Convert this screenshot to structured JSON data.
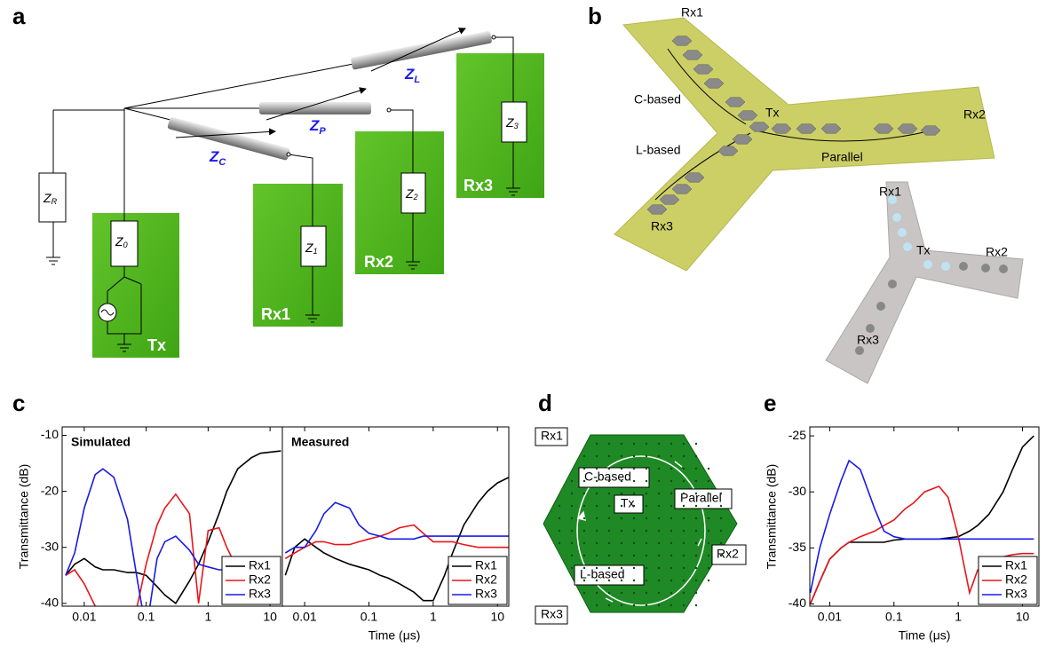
{
  "panels": {
    "a": {
      "label": "a",
      "z_r": [
        "Z",
        "R"
      ],
      "z_0": [
        "Z",
        "0"
      ],
      "z_1": [
        "Z",
        "1"
      ],
      "z_2": [
        "Z",
        "2"
      ],
      "z_3": [
        "Z",
        "3"
      ],
      "z_c": [
        "Z",
        "C"
      ],
      "z_p": [
        "Z",
        "P"
      ],
      "z_l": [
        "Z",
        "L"
      ],
      "tx": "Tx",
      "rx1": "Rx1",
      "rx2": "Rx2",
      "rx3": "Rx3"
    },
    "b": {
      "label": "b",
      "rx1": "Rx1",
      "c_based": "C-based",
      "l_based": "L-based",
      "tx": "Tx",
      "rx2": "Rx2",
      "parallel": "Parallel",
      "rx3": "Rx3",
      "photo_rx1": "Rx1",
      "photo_tx": "Tx",
      "photo_rx2": "Rx2",
      "photo_rx3": "Rx3"
    },
    "c": {
      "label": "c"
    },
    "d": {
      "label": "d",
      "rx1": "Rx1",
      "c_based": "C-based",
      "tx": "Tx",
      "parallel": "Parallel",
      "rx2": "Rx2",
      "l_based": "L-based",
      "rx3": "Rx3"
    },
    "e": {
      "label": "e"
    }
  },
  "chart_data": [
    {
      "type": "line",
      "title": "Simulated",
      "ylabel": "Transmittance (dB)",
      "log_x": true,
      "legend": "lower right",
      "x": [
        0.005,
        0.007,
        0.01,
        0.015,
        0.02,
        0.03,
        0.05,
        0.07,
        0.1,
        0.15,
        0.2,
        0.3,
        0.5,
        0.7,
        1,
        1.5,
        2,
        3,
        5,
        7,
        10,
        15
      ],
      "xlim": [
        0.0044,
        15.8
      ],
      "ylim": [
        -40.5,
        -8.5
      ],
      "xticks": [
        0.01,
        0.1,
        1,
        10
      ],
      "yticks": [
        -10,
        -20,
        -30,
        -40
      ],
      "series": [
        {
          "name": "Rx1",
          "color": "#000000",
          "values": [
            -35,
            -33,
            -32,
            -33.5,
            -34,
            -34,
            -34.5,
            -34.5,
            -35,
            -37,
            -38.5,
            -40,
            -36,
            -33,
            -29,
            -24,
            -20,
            -16,
            -14,
            -13.2,
            -13,
            -12.8
          ]
        },
        {
          "name": "Rx2",
          "color": "#e8161b",
          "values": [
            -35,
            -34,
            -36.5,
            -40.5,
            -42,
            -45,
            -45,
            -41,
            -33,
            -26,
            -23,
            -20.5,
            -24,
            -40,
            -27,
            -26.5,
            -30,
            -34,
            -34,
            -34,
            -34,
            -34
          ]
        },
        {
          "name": "Rx3",
          "color": "#1a1ae6",
          "values": [
            -35,
            -31,
            -23,
            -17,
            -16,
            -17.5,
            -25,
            -35,
            -45,
            -32,
            -29,
            -28,
            -30.5,
            -33,
            -33.5,
            -34,
            -34,
            -34,
            -34,
            -34,
            -34,
            -34
          ]
        }
      ]
    },
    {
      "type": "line",
      "title": "Measured",
      "xlabel": "Time (μs)",
      "log_x": true,
      "legend": "lower right",
      "x": [
        0.005,
        0.007,
        0.01,
        0.015,
        0.02,
        0.03,
        0.05,
        0.07,
        0.1,
        0.15,
        0.2,
        0.3,
        0.5,
        0.7,
        1,
        1.5,
        2,
        3,
        5,
        7,
        10,
        15
      ],
      "xlim": [
        0.0045,
        15
      ],
      "ylim": [
        -40.5,
        -8.5
      ],
      "xticks": [
        0.01,
        0.1,
        1,
        10
      ],
      "series": [
        {
          "name": "Rx1",
          "color": "#000000",
          "values": [
            -35,
            -30,
            -28.5,
            -30,
            -31,
            -32,
            -33,
            -33.5,
            -34,
            -35,
            -35.5,
            -36.5,
            -38,
            -39.5,
            -39.5,
            -35,
            -31,
            -26,
            -22,
            -20,
            -18.5,
            -17.5
          ]
        },
        {
          "name": "Rx2",
          "color": "#e8161b",
          "values": [
            -32,
            -31,
            -30,
            -29,
            -29,
            -29.5,
            -29.5,
            -29,
            -28.5,
            -28,
            -27.5,
            -26.5,
            -26,
            -27.5,
            -29,
            -29,
            -29,
            -29.5,
            -30,
            -30,
            -30,
            -30
          ]
        },
        {
          "name": "Rx3",
          "color": "#1a1ae6",
          "values": [
            -31,
            -30,
            -30,
            -27,
            -24,
            -22,
            -23,
            -26,
            -27.5,
            -28,
            -28.5,
            -28.5,
            -28.5,
            -28,
            -28,
            -28,
            -28,
            -28,
            -28,
            -28,
            -28,
            -28
          ]
        }
      ]
    },
    {
      "type": "line",
      "ylabel": "Transmittance (dB)",
      "xlabel": "Time (μs)",
      "log_x": true,
      "legend": "lower right",
      "x": [
        0.005,
        0.007,
        0.01,
        0.015,
        0.02,
        0.03,
        0.05,
        0.07,
        0.1,
        0.15,
        0.2,
        0.3,
        0.5,
        0.7,
        1,
        1.5,
        2,
        3,
        5,
        7,
        10,
        15
      ],
      "xlim": [
        0.0049,
        18
      ],
      "ylim": [
        -40.2,
        -24.2
      ],
      "xticks": [
        0.01,
        0.1,
        1,
        10
      ],
      "yticks": [
        -25,
        -30,
        -35,
        -40
      ],
      "series": [
        {
          "name": "Rx1",
          "color": "#000000",
          "values": [
            -40,
            -38,
            -36,
            -35,
            -34.5,
            -34.5,
            -34.5,
            -34.5,
            -34.3,
            -34.2,
            -34.2,
            -34.2,
            -34.2,
            -34.1,
            -34,
            -33.5,
            -33,
            -32,
            -30,
            -28,
            -26,
            -25
          ]
        },
        {
          "name": "Rx2",
          "color": "#e8161b",
          "values": [
            -40,
            -38,
            -36,
            -35,
            -34.5,
            -34,
            -33.5,
            -33,
            -32.5,
            -31.5,
            -31,
            -30,
            -29.5,
            -30.5,
            -34,
            -39,
            -37,
            -36,
            -35.8,
            -35.6,
            -35.5,
            -35.5
          ]
        },
        {
          "name": "Rx3",
          "color": "#1a1ae6",
          "values": [
            -39,
            -35,
            -32,
            -29,
            -27.2,
            -28,
            -31.5,
            -33.5,
            -34,
            -34.2,
            -34.2,
            -34.2,
            -34.2,
            -34.2,
            -34.2,
            -34.2,
            -34.2,
            -34.2,
            -34.2,
            -34.2,
            -34.2,
            -34.2
          ]
        }
      ]
    }
  ]
}
